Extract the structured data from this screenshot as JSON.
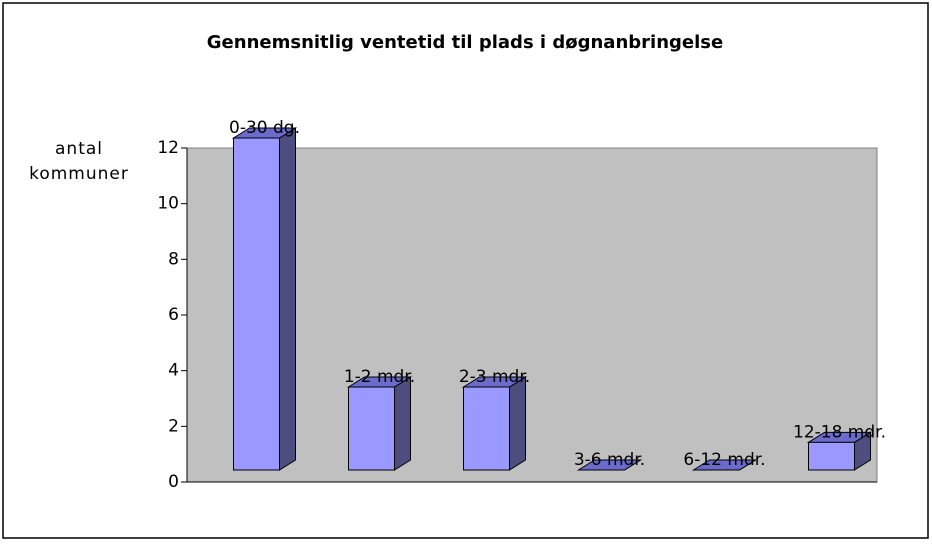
{
  "chart_data": {
    "type": "bar",
    "title": "Gennemsnitlig ventetid til plads i døgnanbringelse",
    "ylabel": "antal kommuner",
    "categories": [
      "0-30 dg.",
      "1-2 mdr.",
      "2-3 mdr.",
      "3-6 mdr.",
      "6-12 mdr.",
      "12-18 mdr."
    ],
    "values": [
      12,
      3,
      3,
      0,
      0,
      1
    ],
    "color": "#9999ff",
    "ylim": [
      0,
      12
    ],
    "yticks": [
      0,
      2,
      4,
      6,
      8,
      10,
      12
    ],
    "grid": false
  }
}
